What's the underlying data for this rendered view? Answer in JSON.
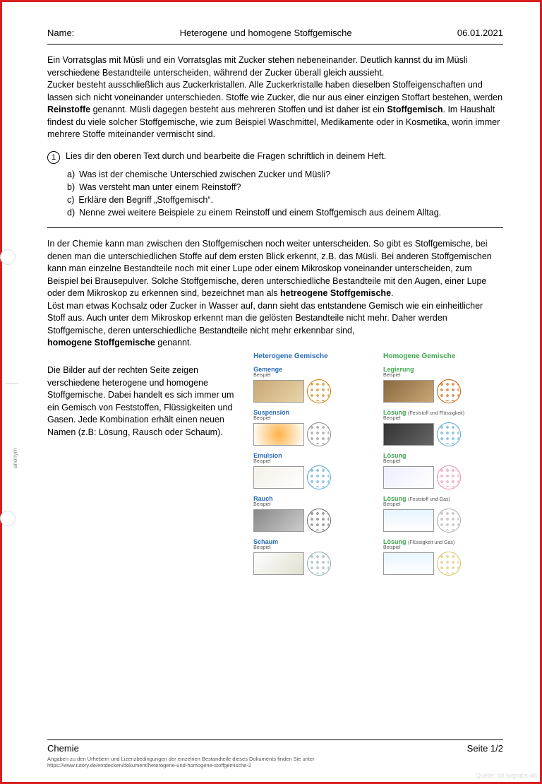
{
  "header": {
    "name_label": "Name:",
    "title": "Heterogene und homogene Stoffgemische",
    "date": "06.01.2021"
  },
  "intro": {
    "p1": "Ein Vorratsglas mit Müsli und ein Vorratsglas mit Zucker stehen nebeneinander. Deutlich kannst du im Müsli verschiedene Bestandteile unterscheiden, während der Zucker überall gleich aussieht.",
    "p2a": "Zucker besteht ausschließlich aus Zuckerkristallen. Alle Zuckerkristalle haben dieselben Stoffeigenschaften und lassen sich nicht voneinander unterschieden. Stoffe wie Zucker, die nur aus einer einzigen Stoffart bestehen, werden ",
    "bold1": "Reinstoffe",
    "p2b": " genannt. Müsli dagegen besteht aus mehreren Stoffen und ist daher ist ein ",
    "bold2": "Stoffgemisch",
    "p2c": ". Im Haushalt findest du viele solcher Stoffgemische, wie zum Beispiel Waschmittel, Medikamente oder in Kosmetika, worin immer mehrere Stoffe miteinander vermischt sind."
  },
  "task": {
    "num": "1",
    "prompt": "Lies dir den oberen Text durch und bearbeite die Fragen schriftlich in deinem Heft.",
    "items": [
      {
        "k": "a)",
        "t": "Was ist der chemische Unterschied zwischen Zucker und Müsli?"
      },
      {
        "k": "b)",
        "t": "Was versteht man unter einem Reinstoff?"
      },
      {
        "k": "c)",
        "t": "Erkläre den Begriff „Stoffgemisch“."
      },
      {
        "k": "d)",
        "t": "Nenne zwei weitere Beispiele zu einem Reinstoff und einem Stoffgemisch aus deinem Alltag."
      }
    ]
  },
  "para2": {
    "a": "In der Chemie kann man zwischen den Stoffgemischen noch weiter unterscheiden. So gibt es Stoffgemische, bei denen man die unterschiedlichen Stoffe auf dem ersten Blick erkennt, z.B. das Müsli. Bei anderen Stoffgemischen kann man einzelne Bestandteile noch mit einer Lupe oder einem Mikroskop voneinander unterscheiden, zum Beispiel bei Brausepulver. Solche Stoffgemische, deren unterschiedliche Bestandteile mit den Augen, einer Lupe oder dem Mikroskop zu erkennen sind, bezeichnet man als ",
    "bold1": "hetreogene Stoffgemische",
    "b": ".",
    "c": "Löst man etwas Kochsalz oder Zucker in Wasser auf, dann sieht das entstandene Gemisch wie ein einheitlicher Stoff aus. Auch unter dem Mikroskop erkennt man die gelösten Bestandteile nicht mehr. Daher werden Stoffgemische, deren unterschiedliche Bestandteile nicht mehr erkennbar sind,",
    "bold2": "homogene Stoffgemische",
    "d": " genannt."
  },
  "lower_para": "Die Bilder auf der rechten Seite zeigen verschiedene heterogene und homogene Stoffgemische. Dabei handelt es sich immer um ein Gemisch von Feststoffen, Flüssigkeiten und Gasen. Jede Kombination erhält einen neuen Namen (z.B: Lösung, Rausch oder Schaum).",
  "columns": {
    "left_title": "Heterogene Gemische",
    "right_title": "Homogene Gemische",
    "beispiel": "Beispiel",
    "left": [
      {
        "name": "Gemenge",
        "photo": "ph-grain",
        "diag_color": "#cc7a00"
      },
      {
        "name": "Suspension",
        "photo": "ph-orange",
        "diag_color": "#888"
      },
      {
        "name": "Emulsion",
        "photo": "ph-milk",
        "diag_color": "#4fa3d9"
      },
      {
        "name": "Rauch",
        "photo": "ph-smoke",
        "diag_color": "#666"
      },
      {
        "name": "Schaum",
        "photo": "ph-foam",
        "diag_color": "#8aa"
      }
    ],
    "right": [
      {
        "name": "Legierung",
        "note": "",
        "photo": "ph-metal",
        "diag_color": "#cc5500"
      },
      {
        "name": "Lösung",
        "note": "(Feststoff und Flüssigkeit)",
        "photo": "ph-dark",
        "diag_color": "#4fa3d9"
      },
      {
        "name": "Lösung",
        "note": "",
        "photo": "ph-clear",
        "diag_color": "#e8a"
      },
      {
        "name": "Lösung",
        "note": "(Feststoff und Gas)",
        "photo": "ph-water",
        "diag_color": "#aaa"
      },
      {
        "name": "Lösung",
        "note": "(Flüssigkeit und Gas)",
        "photo": "ph-water",
        "diag_color": "#d8c060"
      }
    ]
  },
  "footer": {
    "subject": "Chemie",
    "page": "Seite 1/2"
  },
  "credits": {
    "line1": "Angaben zu den Urhebern und Lizenzbedingungen der einzelnen Bestandteile dieses Dokuments finden Sie unter",
    "line2": "https://www.tutory.de/entdecken/dokument/heterogene-und-homogene-stoffgemische-2"
  },
  "anonym": "anonym",
  "watermark": "Quelle: bit.ly/gratis-ab"
}
